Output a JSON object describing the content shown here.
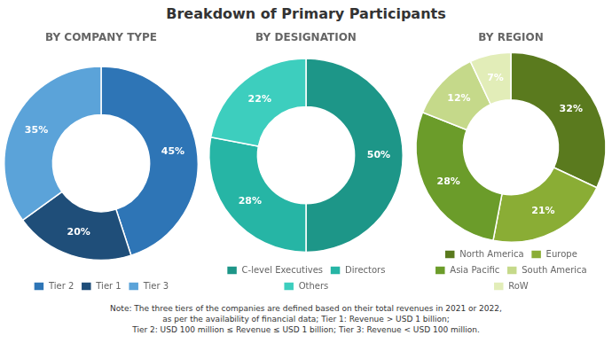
{
  "title": "Breakdown of Primary Participants",
  "annotations": [
    "Note: The three tiers of the companies are defined based on their total revenues in 2021 or 2022,\nas per the availability of financial data; Tier 1: Revenue > USD 1 billion;\nTier 2: USD 100 million ≤ Revenue ≤ USD 1 billion; Tier 3: Revenue < USD 100 million."
  ],
  "chart_data": [
    {
      "type": "doughnut",
      "title": "BY COMPANY TYPE",
      "categories": [
        "Tier 2",
        "Tier 1",
        "Tier 3"
      ],
      "values": [
        45,
        20,
        35
      ],
      "value_labels": [
        "45%",
        "20%",
        "35%"
      ],
      "colors": [
        "#2e75b6",
        "#1f4e79",
        "#5ba3d9"
      ],
      "data_labels": true,
      "legend": "bottom"
    },
    {
      "type": "doughnut",
      "title": "BY DESIGNATION",
      "categories": [
        "C-level Executives",
        "Directors",
        "Others"
      ],
      "values": [
        50,
        28,
        22
      ],
      "value_labels": [
        "50%",
        "28%",
        "22%"
      ],
      "colors": [
        "#1d9688",
        "#26b5a5",
        "#3dcebe"
      ],
      "data_labels": true,
      "legend": "bottom"
    },
    {
      "type": "doughnut",
      "title": "BY REGION",
      "categories": [
        "North America",
        "Europe",
        "Asia Pacific",
        "South America",
        "RoW"
      ],
      "values": [
        32,
        21,
        28,
        12,
        7
      ],
      "value_labels": [
        "32%",
        "21%",
        "28%",
        "12%",
        "7%"
      ],
      "colors": [
        "#5a7a1e",
        "#8aad35",
        "#6b9c2a",
        "#c5d98a",
        "#e2edb8"
      ],
      "data_labels": true,
      "legend": "bottom"
    }
  ]
}
